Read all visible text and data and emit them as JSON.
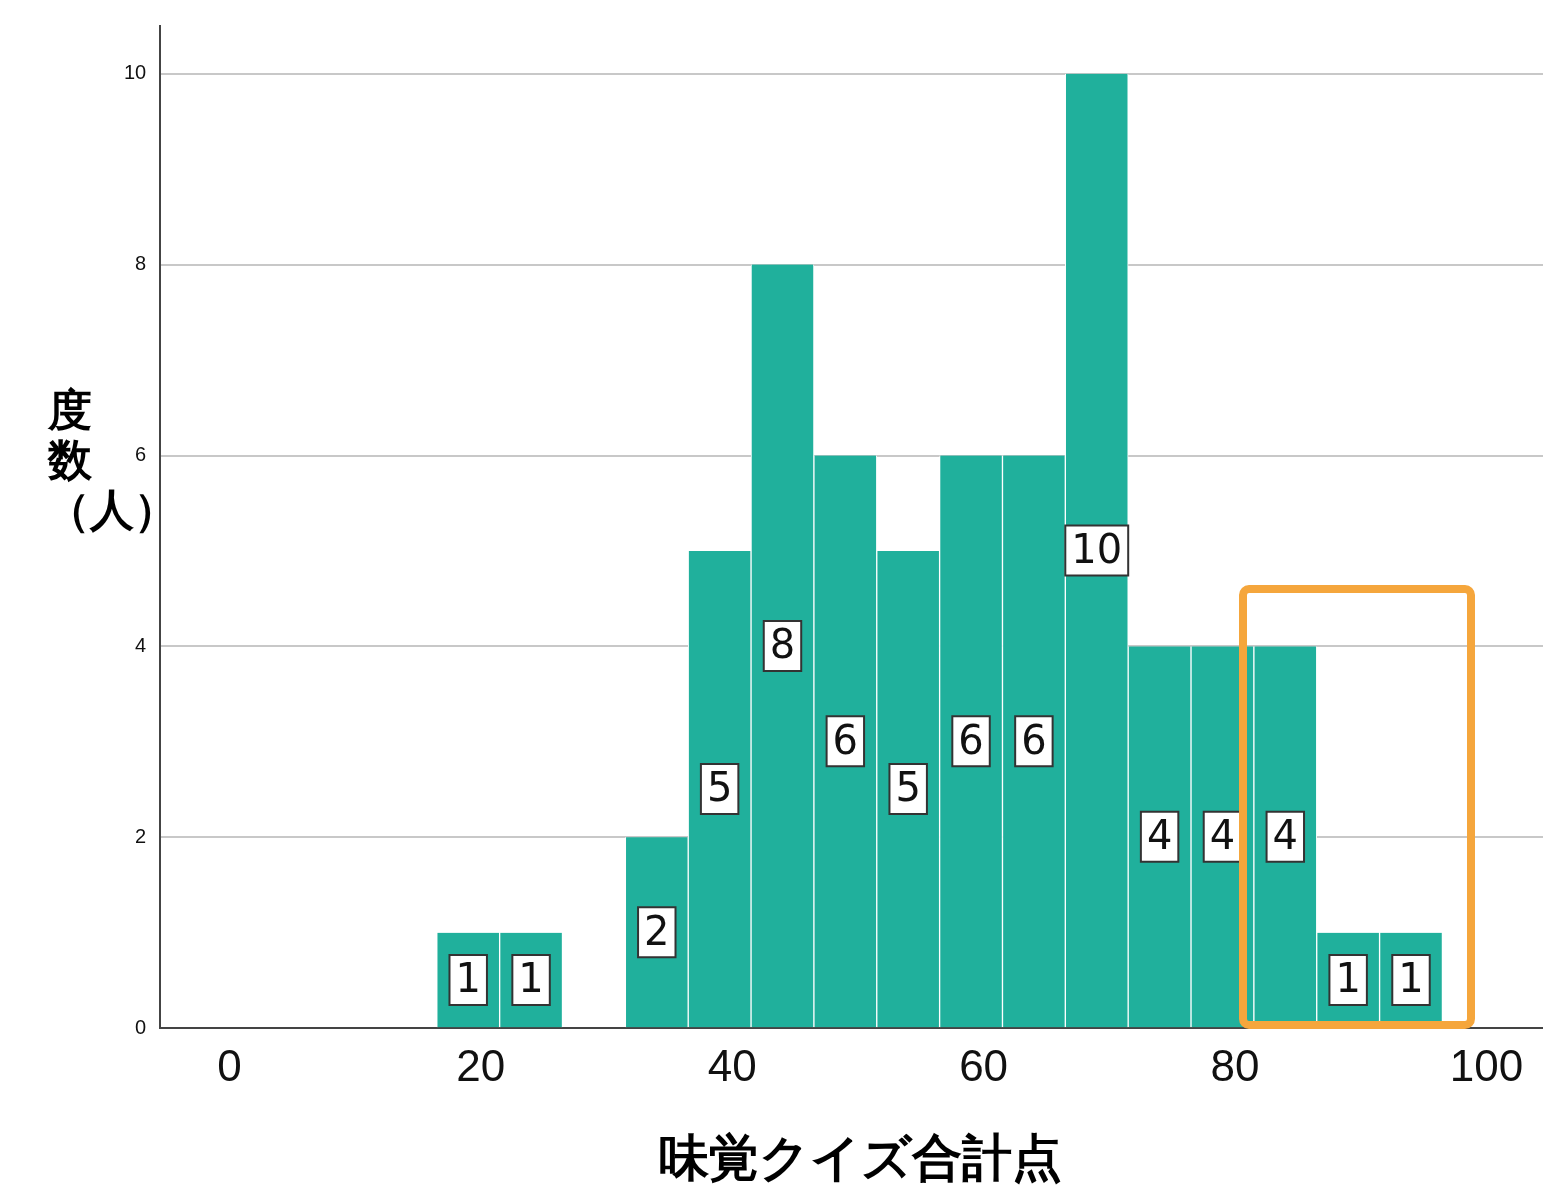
{
  "chart_data": {
    "type": "histogram",
    "xlabel": "味覚クイズ合計点",
    "ylabel": "度数（人）",
    "bins": [
      16.5,
      21.5,
      26.5,
      31.5,
      36.5,
      41.5,
      46.5,
      51.5,
      56.5,
      61.5,
      66.5,
      71.5,
      76.5,
      81.5,
      86.5,
      91.5,
      96.5
    ],
    "values": [
      1,
      1,
      0,
      2,
      5,
      8,
      6,
      5,
      6,
      6,
      10,
      4,
      4,
      4,
      1,
      1
    ],
    "color": "#20b09c",
    "xlim": [
      -5.5,
      104.5
    ],
    "xticks": [
      0,
      20,
      40,
      60,
      80,
      100
    ],
    "ylim": [
      0,
      10.5
    ],
    "yticks": [
      0,
      2,
      4,
      6,
      8,
      10
    ],
    "value_labels": [
      "1",
      "1",
      null,
      "2",
      "5",
      "8",
      "6",
      "5",
      "6",
      "6",
      "10",
      "4",
      "4",
      "4",
      "1",
      "1"
    ],
    "grid": "y",
    "legend": false
  }
}
